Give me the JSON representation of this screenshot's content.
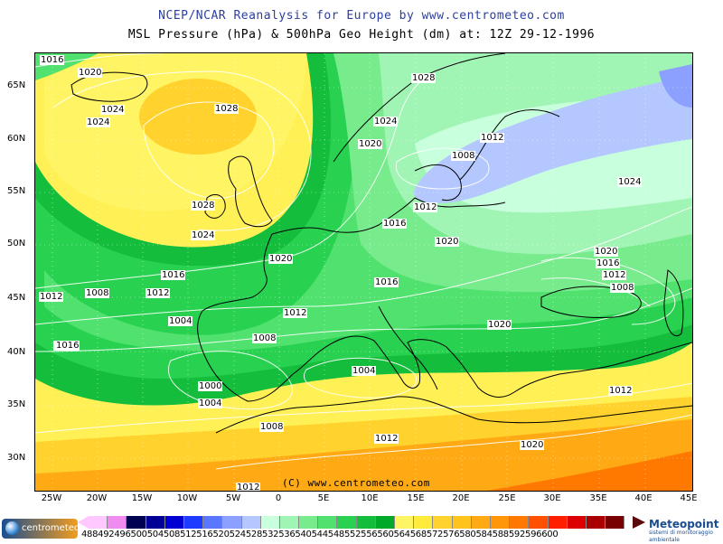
{
  "header": {
    "title": "NCEP/NCAR Reanalysis for Europe by www.centrometeo.com",
    "subtitle": "MSL Pressure (hPa) & 500hPa Geo Height (dm) at: 12Z 29-12-1996"
  },
  "axes": {
    "latitudes": [
      "65N",
      "60N",
      "55N",
      "50N",
      "45N",
      "40N",
      "35N",
      "30N"
    ],
    "longitudes": [
      "25W",
      "20W",
      "15W",
      "10W",
      "5W",
      "0",
      "5E",
      "10E",
      "15E",
      "20E",
      "25E",
      "30E",
      "35E",
      "40E",
      "45E"
    ]
  },
  "isobar_labels": [
    "1016",
    "1020",
    "1024",
    "1024",
    "1028",
    "1028",
    "1024",
    "1020",
    "1012",
    "1008",
    "1024",
    "1028",
    "1024",
    "1016",
    "1012",
    "1020",
    "1016",
    "1020",
    "1020",
    "1016",
    "1012",
    "1012",
    "1008",
    "1016",
    "1012",
    "1008",
    "1012",
    "1004",
    "1012",
    "1008",
    "1020",
    "1016",
    "1004",
    "1000",
    "1004",
    "1008",
    "1012",
    "1012",
    "1020",
    "1012"
  ],
  "copyright": "(C) www.centrometeo.com",
  "legend": {
    "labels": "488492496500504508512516520524528532536540544548552556560564568572576580584588592596600",
    "colors": [
      "#ffc8ff",
      "#f08cf0",
      "#000050",
      "#000096",
      "#0000d2",
      "#1e3cff",
      "#5a78ff",
      "#8ca0ff",
      "#b4c8ff",
      "#c8ffdc",
      "#a0f5b4",
      "#78eb8c",
      "#50e16e",
      "#28d250",
      "#14be3c",
      "#00aa28",
      "#fff564",
      "#ffeb3c",
      "#ffd22d",
      "#ffc31e",
      "#ffaa14",
      "#ff960a",
      "#ff7800",
      "#ff5000",
      "#ff1e00",
      "#dc0000",
      "#aa0000",
      "#780000"
    ]
  },
  "logos": {
    "left": "centrometeo",
    "right_name": "Meteopoint",
    "right_sub": "sistemi di monitoraggio ambientale"
  }
}
